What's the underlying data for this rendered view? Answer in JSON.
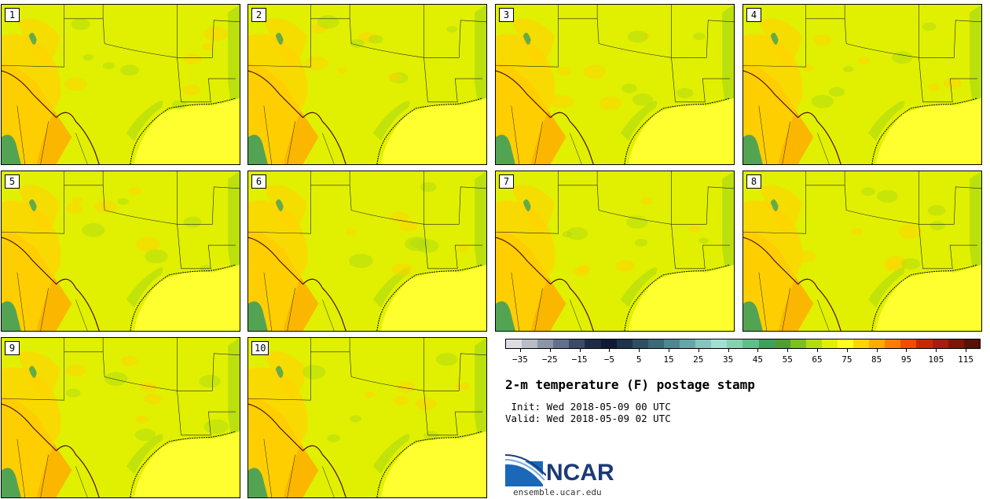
{
  "panels": [
    {
      "label": "1"
    },
    {
      "label": "2"
    },
    {
      "label": "3"
    },
    {
      "label": "4"
    },
    {
      "label": "5"
    },
    {
      "label": "6"
    },
    {
      "label": "7"
    },
    {
      "label": "8"
    },
    {
      "label": "9"
    },
    {
      "label": "10"
    }
  ],
  "colorbar": {
    "colors": [
      "#dcdde3",
      "#b8bcc6",
      "#8d96a5",
      "#64708a",
      "#3c4a66",
      "#1e2b45",
      "#0e1b33",
      "#1f344a",
      "#2e4f63",
      "#3c6878",
      "#4e8890",
      "#65a7a8",
      "#82c6bf",
      "#9fe0d4",
      "#86d2ae",
      "#5fbf8a",
      "#3fa05c",
      "#4e9f30",
      "#7cbf20",
      "#b3dc10",
      "#e1f000",
      "#ffff20",
      "#ffd400",
      "#ffab00",
      "#ff7e00",
      "#f04d00",
      "#c72a00",
      "#a51e10",
      "#7f1508",
      "#5b1005"
    ],
    "tick_labels": [
      "−35",
      "−25",
      "−15",
      "−5",
      "5",
      "15",
      "25",
      "35",
      "45",
      "55",
      "65",
      "75",
      "85",
      "95",
      "105",
      "115"
    ],
    "range": [
      -40,
      120
    ]
  },
  "title": "2-m temperature (F) postage stamp",
  "init_text": " Init: Wed 2018-05-09 00 UTC",
  "valid_text": "Valid: Wed 2018-05-09 02 UTC",
  "logo": {
    "word": "NCAR",
    "colors": {
      "blue": "#1b68b8",
      "navy": "#1b3a77"
    }
  },
  "site": "ensemble.ucar.edu",
  "map_colors": {
    "base": "#e0f000",
    "warm": "#ffd400",
    "hot": "#ffab00",
    "cool": "#b3dc10",
    "cold": "#3fa05c",
    "sea": "#ffff30",
    "lines": "#222222"
  }
}
